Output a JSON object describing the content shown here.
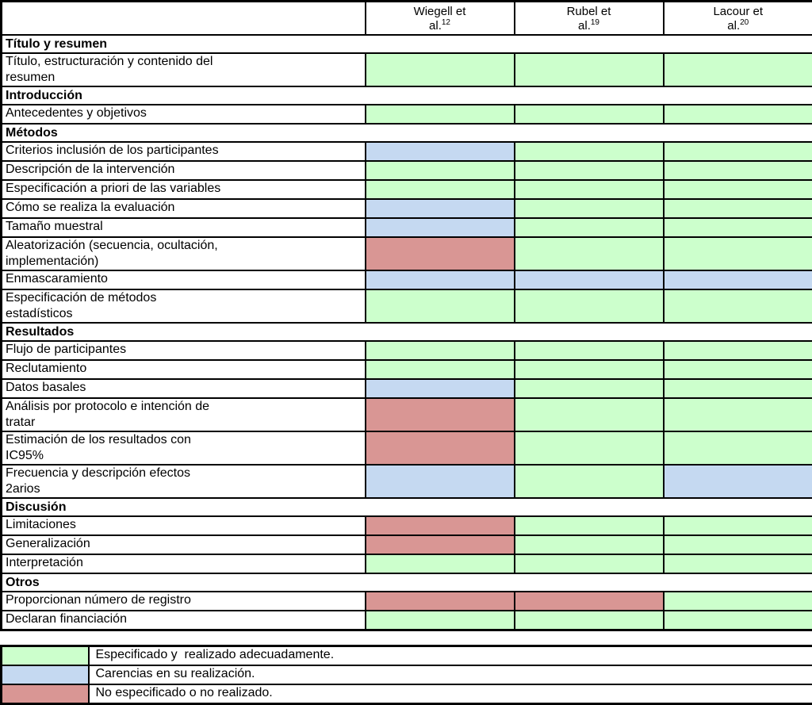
{
  "palette": {
    "green": "#CCFFCC",
    "blue": "#C5D9F1",
    "red": "#D99694",
    "border": "#000000",
    "background": "#FFFFFF"
  },
  "header": {
    "studies": [
      {
        "line1": "Wiegell et",
        "line2": "al.",
        "ref": "12"
      },
      {
        "line1": "Rubel et",
        "line2": "al.",
        "ref": "19"
      },
      {
        "line1": "Lacour et",
        "line2": "al.",
        "ref": "20"
      }
    ]
  },
  "table": {
    "sections": [
      {
        "title": "Título y resumen",
        "rows": [
          {
            "label": "Título, estructuración y contenido del\nresumen",
            "values": [
              "green",
              "green",
              "green"
            ]
          }
        ]
      },
      {
        "title": "Introducción",
        "rows": [
          {
            "label": "Antecedentes y objetivos",
            "values": [
              "green",
              "green",
              "green"
            ]
          }
        ]
      },
      {
        "title": "Métodos",
        "rows": [
          {
            "label": "Criterios inclusión de los participantes",
            "values": [
              "blue",
              "green",
              "green"
            ]
          },
          {
            "label": "Descripción de la intervención",
            "values": [
              "green",
              "green",
              "green"
            ]
          },
          {
            "label": "Especificación a priori de las variables",
            "values": [
              "green",
              "green",
              "green"
            ]
          },
          {
            "label": "Cómo se realiza la evaluación",
            "values": [
              "blue",
              "green",
              "green"
            ]
          },
          {
            "label": "Tamaño muestral",
            "values": [
              "blue",
              "green",
              "green"
            ]
          },
          {
            "label": "Aleatorización (secuencia, ocultación,\nimplementación)",
            "values": [
              "red",
              "green",
              "green"
            ]
          },
          {
            "label": "Enmascaramiento",
            "values": [
              "blue",
              "blue",
              "blue"
            ]
          },
          {
            "label": "Especificación de métodos\nestadísticos",
            "values": [
              "green",
              "green",
              "green"
            ]
          }
        ]
      },
      {
        "title": "Resultados",
        "rows": [
          {
            "label": "Flujo de participantes",
            "values": [
              "green",
              "green",
              "green"
            ]
          },
          {
            "label": "Reclutamiento",
            "values": [
              "green",
              "green",
              "green"
            ]
          },
          {
            "label": "Datos basales",
            "values": [
              "blue",
              "green",
              "green"
            ]
          },
          {
            "label": "Análisis por protocolo e intención de\ntratar",
            "values": [
              "red",
              "green",
              "green"
            ]
          },
          {
            "label": "Estimación de los resultados con\nIC95%",
            "values": [
              "red",
              "green",
              "green"
            ]
          },
          {
            "label": "Frecuencia y descripción efectos\n2arios",
            "values": [
              "blue",
              "green",
              "blue"
            ]
          }
        ]
      },
      {
        "title": "Discusión",
        "rows": [
          {
            "label": "Limitaciones",
            "values": [
              "red",
              "green",
              "green"
            ]
          },
          {
            "label": "Generalización",
            "values": [
              "red",
              "green",
              "green"
            ]
          },
          {
            "label": "Interpretación",
            "values": [
              "green",
              "green",
              "green"
            ]
          }
        ]
      },
      {
        "title": "Otros",
        "rows": [
          {
            "label": "Proporcionan número de registro",
            "values": [
              "red",
              "red",
              "green"
            ]
          },
          {
            "label": "Declaran financiación",
            "values": [
              "green",
              "green",
              "green"
            ]
          }
        ]
      }
    ]
  },
  "legend": {
    "items": [
      {
        "status": "green",
        "label": "Especificado y  realizado adecuadamente."
      },
      {
        "status": "blue",
        "label": "Carencias en su realización."
      },
      {
        "status": "red",
        "label": "No especificado o no realizado."
      }
    ]
  }
}
